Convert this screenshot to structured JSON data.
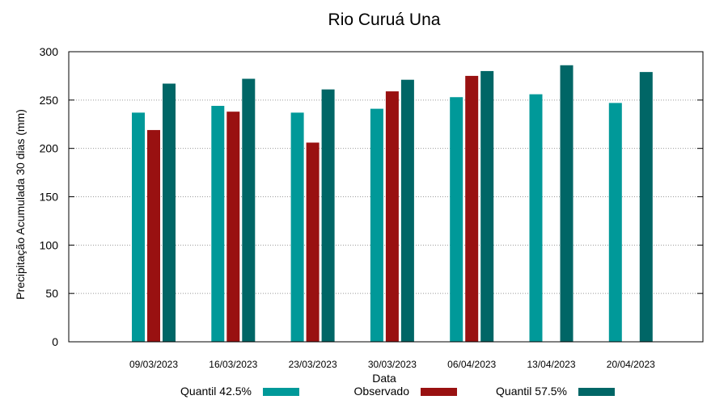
{
  "chart_data": {
    "type": "bar",
    "title": "Rio Curuá Una",
    "xlabel": "Data",
    "ylabel": "Precipitação Acumulada 30 dias (mm)",
    "ylim": [
      0,
      300
    ],
    "yticks": [
      0,
      50,
      100,
      150,
      200,
      250,
      300
    ],
    "grid": true,
    "legend_position": "bottom",
    "categories": [
      "09/03/2023",
      "16/03/2023",
      "23/03/2023",
      "30/03/2023",
      "06/04/2023",
      "13/04/2023",
      "20/04/2023"
    ],
    "series": [
      {
        "name": "Quantil 42.5%",
        "color": "#009999",
        "values": [
          237,
          244,
          237,
          241,
          253,
          256,
          247
        ]
      },
      {
        "name": "Observado",
        "color": "#991111",
        "values": [
          219,
          238,
          206,
          259,
          275,
          null,
          null
        ]
      },
      {
        "name": "Quantil 57.5%",
        "color": "#006666",
        "values": [
          267,
          272,
          261,
          271,
          280,
          286,
          279
        ]
      }
    ]
  }
}
